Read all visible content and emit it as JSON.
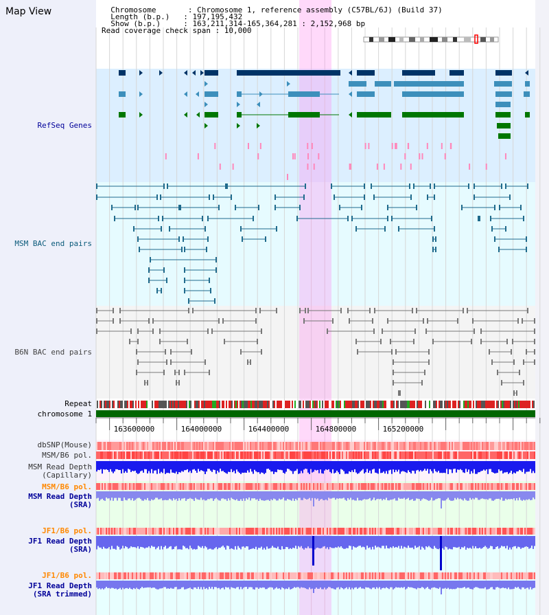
{
  "header": {
    "title": "Map View",
    "info_lines": [
      "  Chromosome       : Chromosome 1, reference assembly (C57BL/6J) (Build 37)",
      "  Length (b.p.)   : 197,195,432",
      "  Show (b.p.)     : 163,211,314-165,364,281 : 2,152,968 bp",
      "Read coverage check span : 10,000"
    ]
  },
  "tracks": {
    "refseq": "RefSeq Genes",
    "msm_bac": "MSM BAC end pairs",
    "b6n_bac": "B6N BAC end pairs",
    "repeat": "Repeat",
    "chromosome": "chromosome 1",
    "dbsnp": "dbSNP(Mouse)",
    "msm_b6_pol": "MSM/B6 pol.",
    "msm_depth_cap_1": "MSM Read Depth",
    "msm_depth_cap_2": "(Capillary)",
    "msm_b6_pol_sra": "MSM/B6 pol.",
    "msm_depth_sra_1": "MSM Read Depth",
    "msm_depth_sra_2": "(SRA)",
    "jf1_b6_pol": "JF1/B6 pol.",
    "jf1_depth_sra_1": "JF1 Read Depth",
    "jf1_depth_sra_2": "(SRA)",
    "jf1_b6_pol_trim": "JF1/B6 pol.",
    "jf1_depth_trim_1": "JF1 Read Depth",
    "jf1_depth_trim_2": "(SRA trimmed)"
  },
  "axis": {
    "ticks": [
      "163600000",
      "164000000",
      "164400000",
      "164800000",
      "165200000"
    ]
  },
  "colors": {
    "refseq_bg": "#dcefff",
    "msm_bac_bg": "#e6fbff",
    "b6n_bac_bg": "#f4f4f4",
    "highlight": "#ff88ee",
    "refseq_navy": "#003366",
    "refseq_teal": "#3d8fbb",
    "refseq_green": "#007700",
    "msm_line": "#1f6a8c",
    "b6n_line": "#777777",
    "label_blue": "#000099",
    "label_teal": "#0a5a7a",
    "label_orange": "#ff8800"
  }
}
